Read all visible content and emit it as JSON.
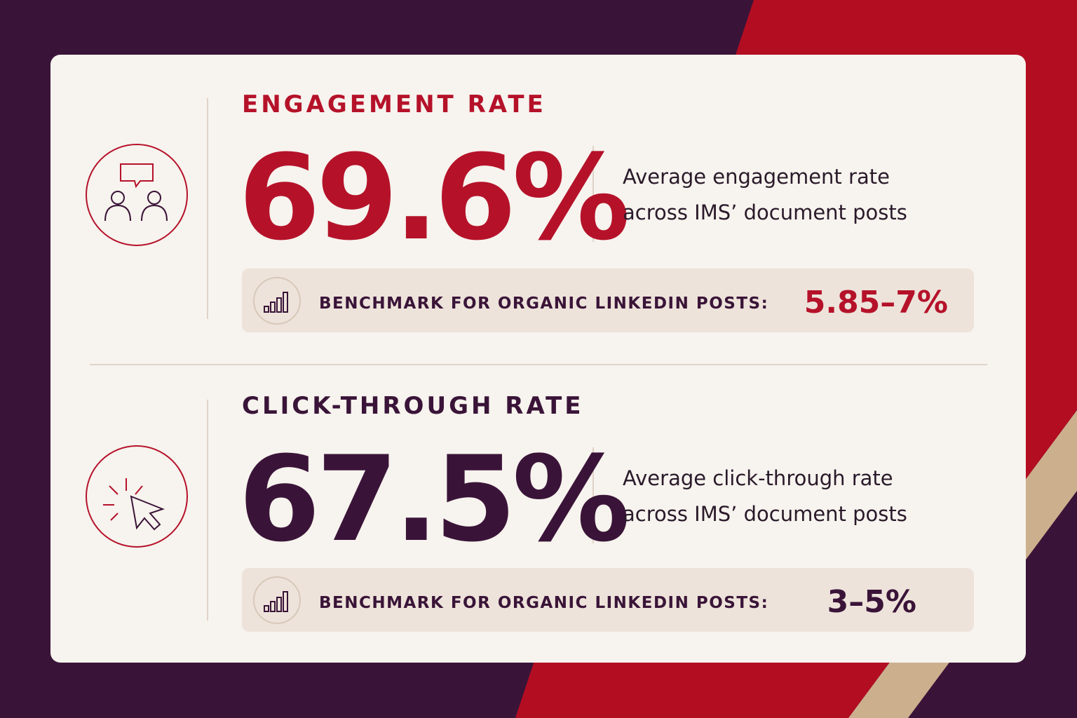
{
  "sections": [
    {
      "title": "ENGAGEMENT RATE",
      "value": "69.6%",
      "description": [
        "Average engagement rate",
        "across IMS’ document posts"
      ],
      "benchmark_label": "BENCHMARK FOR ORGANIC LINKEDIN POSTS:",
      "benchmark_value": "5.85–7%"
    },
    {
      "title": "CLICK-THROUGH RATE",
      "value": "67.5%",
      "description": [
        "Average click-through rate",
        "across IMS’ document posts"
      ],
      "benchmark_label": "BENCHMARK FOR ORGANIC LINKEDIN POSTS:",
      "benchmark_value": "3–5%"
    }
  ]
}
